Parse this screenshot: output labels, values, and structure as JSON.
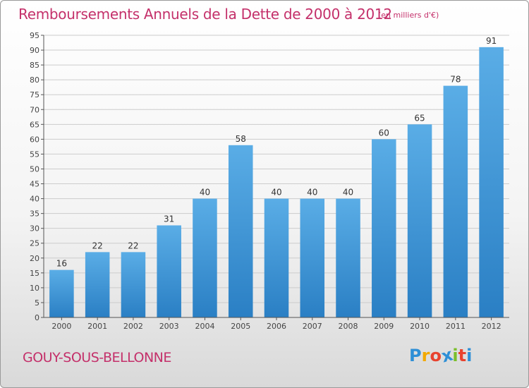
{
  "title": "Remboursements Annuels de la Dette de 2000 à 2012",
  "subtitle": "(en milliers d'€)",
  "commune": "GOUY-SOUS-BELLONNE",
  "logo": {
    "letters": [
      "P",
      "r",
      "o",
      "x",
      "i",
      "t",
      "i"
    ],
    "colors": [
      "#2e8fd6",
      "#f2a900",
      "#e8432f",
      "#2e8fd6",
      "#7bbf2a",
      "#e8432f",
      "#2e8fd6"
    ]
  },
  "colors": {
    "title": "#c4306a",
    "bar_light": "#5aade6",
    "bar_dark": "#2a7fc4",
    "grid": "#cccccc"
  },
  "chart_data": {
    "type": "bar",
    "title": "Remboursements Annuels de la Dette de 2000 à 2012",
    "subtitle": "(en milliers d'€)",
    "categories": [
      "2000",
      "2001",
      "2002",
      "2003",
      "2004",
      "2005",
      "2006",
      "2007",
      "2008",
      "2009",
      "2010",
      "2011",
      "2012"
    ],
    "values": [
      16,
      22,
      22,
      31,
      40,
      58,
      40,
      40,
      40,
      60,
      65,
      78,
      91
    ],
    "ylim": [
      0,
      95
    ],
    "yticks": [
      0,
      5,
      10,
      15,
      20,
      25,
      30,
      35,
      40,
      45,
      50,
      55,
      60,
      65,
      70,
      75,
      80,
      85,
      90,
      95
    ],
    "grid": true,
    "data_labels": true
  }
}
